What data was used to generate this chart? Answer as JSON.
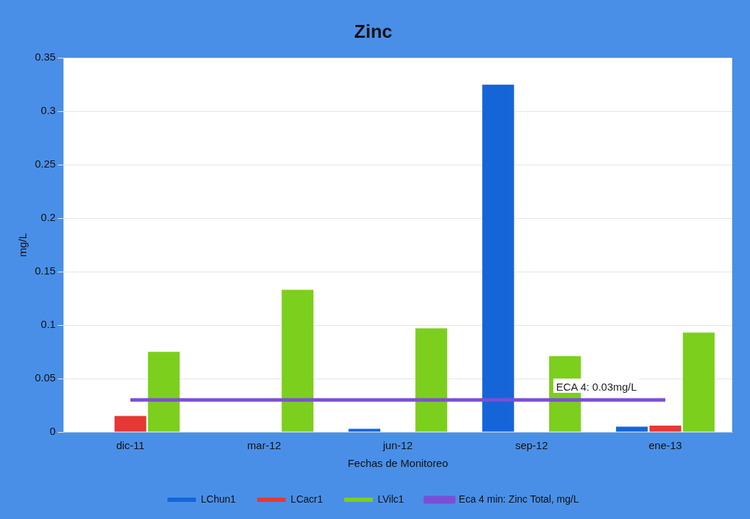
{
  "chart_data": {
    "type": "bar",
    "title": "Zinc",
    "xlabel": "Fechas de Monitoreo",
    "ylabel": "mg/L",
    "categories": [
      "dic-11",
      "mar-12",
      "jun-12",
      "sep-12",
      "ene-13"
    ],
    "series": [
      {
        "name": "LChun1",
        "color": "#1565d8",
        "values": [
          null,
          null,
          0.003,
          0.325,
          0.005
        ]
      },
      {
        "name": "LCacr1",
        "color": "#e53935",
        "values": [
          0.015,
          null,
          null,
          null,
          0.006
        ]
      },
      {
        "name": "LVilc1",
        "color": "#7ccf1c",
        "values": [
          0.075,
          0.133,
          0.097,
          0.071,
          0.093
        ]
      },
      {
        "name": "Eca 4 min: Zinc Total, mg/L",
        "type": "line",
        "color": "#7b4fd6",
        "values": [
          0.03,
          0.03,
          0.03,
          0.03,
          0.03
        ]
      }
    ],
    "annotations": [
      {
        "text": "ECA 4: 0.03mg/L",
        "x": "ene-13",
        "y": 0.03
      }
    ],
    "ylim": [
      0,
      0.35
    ],
    "yticks": [
      0,
      0.05,
      0.1,
      0.15,
      0.2,
      0.25,
      0.3,
      0.35
    ],
    "grid": "y",
    "legend": "bottom",
    "marker": "none"
  }
}
